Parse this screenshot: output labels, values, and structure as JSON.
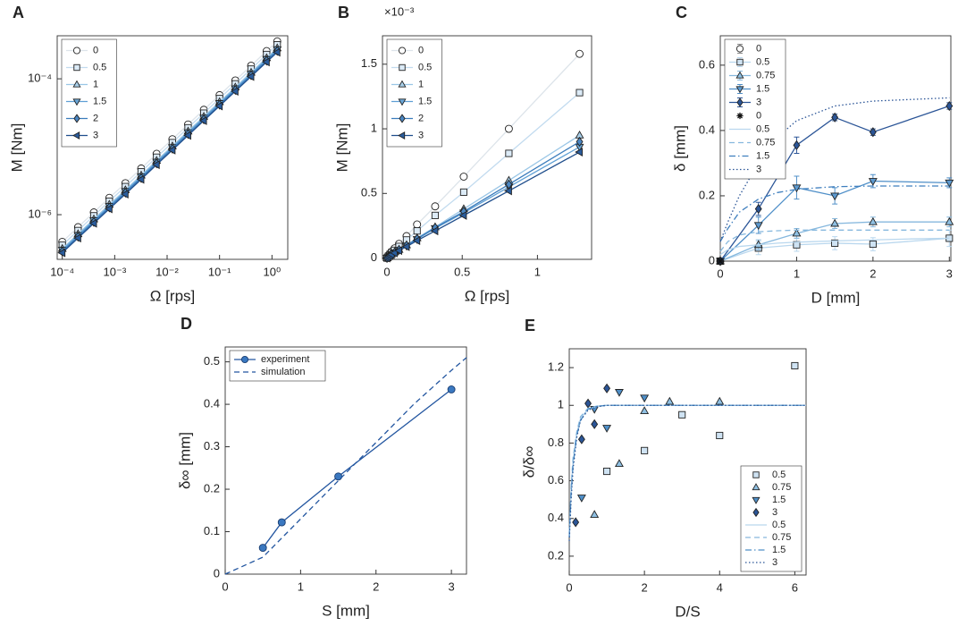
{
  "chart_data": [
    {
      "type": "line",
      "panel_label": "A",
      "xlabel": "Ω [rps]",
      "ylabel": "M [Nm]",
      "xscale": "log",
      "yscale": "log",
      "xlim": [
        8e-05,
        2
      ],
      "ylim": [
        2.2e-07,
        0.00043
      ],
      "xticks": [
        {
          "value": 0.0001,
          "label": "10⁻⁴"
        },
        {
          "value": 0.001,
          "label": "10⁻³"
        },
        {
          "value": 0.01,
          "label": "10⁻²"
        },
        {
          "value": 0.1,
          "label": "10⁻¹"
        },
        {
          "value": 1,
          "label": "10⁰"
        }
      ],
      "yticks": [
        {
          "value": 1e-06,
          "label": "10⁻⁶"
        },
        {
          "value": 0.0001,
          "label": "10⁻⁴"
        }
      ],
      "legend": "upper left",
      "marker_edge": "#222222",
      "x": [
        0.0001,
        0.0002,
        0.0004,
        0.00079,
        0.0016,
        0.0032,
        0.0063,
        0.0126,
        0.0251,
        0.0501,
        0.1,
        0.2,
        0.4,
        0.79,
        1.26
      ],
      "series": [
        {
          "name": "0",
          "color": "#dde4ea",
          "marker": "circle",
          "marker_fill": "#ffffff",
          "line": "solid",
          "values": [
            3.98e-07,
            6.55e-07,
            1.08e-06,
            1.77e-06,
            2.91e-06,
            4.79e-06,
            7.87e-06,
            1.29e-05,
            2.13e-05,
            3.5e-05,
            5.75e-05,
            9.46e-05,
            0.000156,
            0.000256,
            0.000356
          ]
        },
        {
          "name": "0.5",
          "color": "#c2dbef",
          "marker": "square",
          "marker_fill": "#dcebf7",
          "line": "solid",
          "values": [
            3.55e-07,
            5.84e-07,
            9.62e-07,
            1.58e-06,
            2.59e-06,
            4.27e-06,
            7.01e-06,
            1.15e-05,
            1.9e-05,
            3.12e-05,
            5.12e-05,
            8.43e-05,
            0.000139,
            0.000228,
            0.000317
          ]
        },
        {
          "name": "1",
          "color": "#9ac6e6",
          "marker": "triangle-up",
          "marker_fill": "#a9cfe9",
          "line": "solid",
          "values": [
            3.16e-07,
            5.2e-07,
            8.58e-07,
            1.41e-06,
            2.31e-06,
            3.8e-06,
            6.25e-06,
            1.02e-05,
            1.69e-05,
            2.78e-05,
            4.57e-05,
            7.51e-05,
            0.000124,
            0.000203,
            0.000283
          ]
        },
        {
          "name": "1.5",
          "color": "#5f9fd4",
          "marker": "triangle-down",
          "marker_fill": "#6aa7d8",
          "line": "solid",
          "values": [
            3.02e-07,
            4.97e-07,
            8.2e-07,
            1.34e-06,
            2.21e-06,
            3.64e-06,
            5.97e-06,
            9.79e-06,
            1.62e-05,
            2.66e-05,
            4.36e-05,
            7.18e-05,
            0.000118,
            0.000194,
            0.00027
          ]
        },
        {
          "name": "2",
          "color": "#3b7cbc",
          "marker": "diamond",
          "marker_fill": "#4a86c2",
          "line": "solid",
          "values": [
            2.88e-07,
            4.74e-07,
            7.82e-07,
            1.28e-06,
            2.11e-06,
            3.47e-06,
            5.7e-06,
            9.34e-06,
            1.54e-05,
            2.53e-05,
            4.16e-05,
            6.85e-05,
            0.000113,
            0.000185,
            0.000258
          ]
        },
        {
          "name": "3",
          "color": "#1f4e8c",
          "marker": "triangle-left",
          "marker_fill": "#2a5c9c",
          "line": "solid",
          "values": [
            2.75e-07,
            4.53e-07,
            7.47e-07,
            1.22e-06,
            2.01e-06,
            3.31e-06,
            5.45e-06,
            8.93e-06,
            1.47e-05,
            2.42e-05,
            3.98e-05,
            6.55e-05,
            0.000108,
            0.000177,
            0.000246
          ]
        }
      ]
    },
    {
      "type": "line",
      "panel_label": "B",
      "xlabel": "Ω [rps]",
      "ylabel": "M [Nm]",
      "y_multiplier": "×10⁻³",
      "xlim": [
        -0.03,
        1.36
      ],
      "ylim": [
        -0.01,
        1.72
      ],
      "xticks": [
        0,
        0.5,
        1
      ],
      "yticks": [
        0,
        0.5,
        1,
        1.5
      ],
      "legend": "upper left",
      "marker_edge": "#222222",
      "x": [
        0,
        0.01,
        0.02,
        0.03,
        0.05,
        0.08,
        0.13,
        0.2,
        0.32,
        0.51,
        0.81,
        1.28
      ],
      "series": [
        {
          "name": "0",
          "color": "#dde4ea",
          "marker": "circle",
          "marker_fill": "#ffffff",
          "line": "solid",
          "values": [
            0,
            0.02,
            0.035,
            0.05,
            0.075,
            0.11,
            0.17,
            0.26,
            0.4,
            0.63,
            1.0,
            1.58
          ]
        },
        {
          "name": "0.5",
          "color": "#c2dbef",
          "marker": "square",
          "marker_fill": "#dcebf7",
          "line": "solid",
          "values": [
            0,
            0.015,
            0.028,
            0.04,
            0.06,
            0.09,
            0.14,
            0.21,
            0.33,
            0.51,
            0.81,
            1.28
          ]
        },
        {
          "name": "1",
          "color": "#9ac6e6",
          "marker": "triangle-up",
          "marker_fill": "#a9cfe9",
          "line": "solid",
          "values": [
            0,
            0.01,
            0.02,
            0.03,
            0.045,
            0.065,
            0.1,
            0.155,
            0.24,
            0.38,
            0.6,
            0.95
          ]
        },
        {
          "name": "1.5",
          "color": "#5f9fd4",
          "marker": "triangle-down",
          "marker_fill": "#6aa7d8",
          "line": "solid",
          "values": [
            0,
            0.01,
            0.019,
            0.028,
            0.042,
            0.062,
            0.095,
            0.145,
            0.23,
            0.35,
            0.55,
            0.86
          ]
        },
        {
          "name": "2",
          "color": "#3b7cbc",
          "marker": "diamond",
          "marker_fill": "#4a86c2",
          "line": "solid",
          "values": [
            0,
            0.01,
            0.02,
            0.029,
            0.043,
            0.064,
            0.098,
            0.15,
            0.235,
            0.36,
            0.57,
            0.9
          ]
        },
        {
          "name": "3",
          "color": "#1f4e8c",
          "marker": "triangle-left",
          "marker_fill": "#2a5c9c",
          "line": "solid",
          "values": [
            0,
            0.009,
            0.018,
            0.027,
            0.04,
            0.058,
            0.088,
            0.135,
            0.21,
            0.33,
            0.52,
            0.82
          ]
        }
      ]
    },
    {
      "type": "line",
      "panel_label": "C",
      "xlabel": "D [mm]",
      "ylabel": "δ [mm]",
      "xlim": [
        0,
        3.02
      ],
      "ylim": [
        0,
        0.69
      ],
      "xticks": [
        0,
        1,
        2,
        3
      ],
      "yticks": [
        0,
        0.2,
        0.4,
        0.6
      ],
      "legend": "upper left",
      "marker_edge": "#222222",
      "series": [
        {
          "name": "0",
          "color": "#888888",
          "marker": "circle",
          "marker_fill": "#ffffff",
          "line": "none",
          "x": [
            0
          ],
          "values": [
            0
          ],
          "errors": [
            0.005
          ]
        },
        {
          "name": "0.5",
          "color": "#b9d7ee",
          "marker": "square",
          "marker_fill": "#cfe3f3",
          "line": "solid",
          "x": [
            0,
            0.5,
            1,
            1.5,
            2,
            3
          ],
          "values": [
            0,
            0.04,
            0.05,
            0.055,
            0.052,
            0.07
          ],
          "errors": [
            0.005,
            0.02,
            0.02,
            0.02,
            0.02,
            0.025
          ]
        },
        {
          "name": "0.75",
          "color": "#86b8de",
          "marker": "triangle-up",
          "marker_fill": "#8fc0e3",
          "line": "solid",
          "x": [
            0,
            0.5,
            1,
            1.5,
            2,
            3
          ],
          "values": [
            0,
            0.05,
            0.085,
            0.115,
            0.12,
            0.12
          ],
          "errors": [
            0.005,
            0.015,
            0.015,
            0.015,
            0.015,
            0.015
          ]
        },
        {
          "name": "1.5",
          "color": "#4f8fc8",
          "marker": "triangle-down",
          "marker_fill": "#5d9ad0",
          "line": "solid",
          "x": [
            0,
            0.5,
            1,
            1.5,
            2,
            3
          ],
          "values": [
            0,
            0.11,
            0.225,
            0.2,
            0.245,
            0.24
          ],
          "errors": [
            0.005,
            0.025,
            0.035,
            0.025,
            0.02,
            0.015
          ]
        },
        {
          "name": "3",
          "color": "#2b5597",
          "marker": "diamond",
          "marker_fill": "#2b5597",
          "line": "solid",
          "x": [
            0,
            0.5,
            1,
            1.5,
            2,
            3
          ],
          "values": [
            0,
            0.16,
            0.355,
            0.44,
            0.395,
            0.475
          ],
          "errors": [
            0.005,
            0.02,
            0.025,
            0.01,
            0.01,
            0.01
          ]
        },
        {
          "name": "0",
          "color": "#111111",
          "marker": "asterisk",
          "marker_fill": "#111111",
          "line": "none",
          "x": [
            0
          ],
          "values": [
            0
          ]
        },
        {
          "name": "0.5",
          "color": "#b9d7ee",
          "marker": "none",
          "line": "solid",
          "x": [
            0,
            0.1,
            0.25,
            0.5,
            0.75,
            1,
            1.5,
            2,
            2.5,
            3
          ],
          "values": [
            0.02,
            0.035,
            0.045,
            0.05,
            0.055,
            0.058,
            0.062,
            0.065,
            0.068,
            0.07
          ]
        },
        {
          "name": "0.75",
          "color": "#86b8de",
          "marker": "none",
          "line": "dashed",
          "x": [
            0,
            0.1,
            0.25,
            0.5,
            0.75,
            1,
            1.5,
            2,
            2.5,
            3
          ],
          "values": [
            0.03,
            0.06,
            0.08,
            0.09,
            0.093,
            0.095,
            0.095,
            0.095,
            0.095,
            0.095
          ]
        },
        {
          "name": "1.5",
          "color": "#3f7fbe",
          "marker": "none",
          "line": "dashdot",
          "x": [
            0,
            0.1,
            0.25,
            0.5,
            0.75,
            1,
            1.5,
            2,
            2.5,
            3
          ],
          "values": [
            0.06,
            0.1,
            0.15,
            0.19,
            0.21,
            0.22,
            0.228,
            0.23,
            0.23,
            0.23
          ]
        },
        {
          "name": "3",
          "color": "#2b5597",
          "marker": "none",
          "line": "dotted",
          "x": [
            0,
            0.1,
            0.25,
            0.5,
            0.75,
            1,
            1.5,
            2,
            2.5,
            3
          ],
          "values": [
            0.06,
            0.12,
            0.2,
            0.3,
            0.38,
            0.43,
            0.475,
            0.49,
            0.495,
            0.5
          ]
        }
      ]
    },
    {
      "type": "line",
      "panel_label": "D",
      "xlabel": "S [mm]",
      "ylabel": "δ∞ [mm]",
      "xlim": [
        0,
        3.2
      ],
      "ylim": [
        0,
        0.535
      ],
      "xticks": [
        0,
        1,
        2,
        3
      ],
      "yticks": [
        0,
        0.1,
        0.2,
        0.3,
        0.4,
        0.5
      ],
      "legend": "upper left",
      "marker_edge": "#1a3d70",
      "series": [
        {
          "name": "experiment",
          "color": "#2356a0",
          "marker": "circle",
          "marker_fill": "#3a78c0",
          "line": "solid",
          "x": [
            0.5,
            0.75,
            1.5,
            3
          ],
          "values": [
            0.062,
            0.122,
            0.23,
            0.435
          ]
        },
        {
          "name": "simulation",
          "color": "#2356a0",
          "marker": "none",
          "line": "dashed",
          "x": [
            0,
            0.5,
            1,
            1.5,
            2,
            2.5,
            3,
            3.2
          ],
          "values": [
            0,
            0.04,
            0.13,
            0.22,
            0.31,
            0.4,
            0.48,
            0.51
          ]
        }
      ]
    },
    {
      "type": "line",
      "panel_label": "E",
      "xlabel": "D/S",
      "ylabel": "δ/δ∞",
      "xlim": [
        0,
        6.3
      ],
      "ylim": [
        0.1,
        1.3
      ],
      "xticks": [
        0,
        2,
        4,
        6
      ],
      "yticks": [
        0.2,
        0.4,
        0.6,
        0.8,
        1,
        1.2
      ],
      "legend": "lower right",
      "marker_edge": "#222222",
      "series": [
        {
          "name": "0.5",
          "color": "#b9d7ee",
          "marker": "square",
          "marker_fill": "#cfe3f3",
          "line": "none",
          "x": [
            1,
            2,
            3,
            4,
            6
          ],
          "values": [
            0.65,
            0.76,
            0.95,
            0.84,
            1.21
          ]
        },
        {
          "name": "0.75",
          "color": "#86b8de",
          "marker": "triangle-up",
          "marker_fill": "#8fc0e3",
          "line": "none",
          "x": [
            0.67,
            1.33,
            2,
            2.67,
            4
          ],
          "values": [
            0.42,
            0.69,
            0.97,
            1.02,
            1.02
          ]
        },
        {
          "name": "1.5",
          "color": "#4f8fc8",
          "marker": "triangle-down",
          "marker_fill": "#4f8fc8",
          "line": "none",
          "x": [
            0.33,
            0.67,
            1,
            1.33,
            2
          ],
          "values": [
            0.51,
            0.98,
            0.88,
            1.07,
            1.04
          ]
        },
        {
          "name": "3",
          "color": "#2b5597",
          "marker": "diamond",
          "marker_fill": "#2b5597",
          "line": "none",
          "x": [
            0.17,
            0.33,
            0.5,
            0.67,
            1
          ],
          "values": [
            0.38,
            0.82,
            1.01,
            0.9,
            1.09
          ]
        },
        {
          "name": "0.5",
          "color": "#b9d7ee",
          "marker": "none",
          "line": "solid",
          "x": [
            0,
            0.05,
            0.1,
            0.2,
            0.3,
            0.5,
            0.75,
            1,
            2,
            4,
            6.3
          ],
          "values": [
            0.3,
            0.55,
            0.7,
            0.85,
            0.93,
            0.98,
            0.995,
            1,
            1,
            1,
            1
          ]
        },
        {
          "name": "0.75",
          "color": "#86b8de",
          "marker": "none",
          "line": "dashed",
          "x": [
            0,
            0.05,
            0.1,
            0.2,
            0.3,
            0.5,
            0.75,
            1,
            2,
            4,
            6.3
          ],
          "values": [
            0.32,
            0.57,
            0.72,
            0.86,
            0.94,
            0.985,
            0.997,
            1,
            1,
            1,
            1
          ]
        },
        {
          "name": "1.5",
          "color": "#4f8fc8",
          "marker": "none",
          "line": "dashdot",
          "x": [
            0,
            0.05,
            0.1,
            0.2,
            0.3,
            0.5,
            0.75,
            1,
            2,
            4,
            6.3
          ],
          "values": [
            0.3,
            0.53,
            0.68,
            0.84,
            0.92,
            0.98,
            0.995,
            1,
            1,
            1,
            1
          ]
        },
        {
          "name": "3",
          "color": "#2b5597",
          "marker": "none",
          "line": "dotted",
          "x": [
            0,
            0.05,
            0.1,
            0.2,
            0.3,
            0.5,
            0.75,
            1,
            2,
            4,
            6.3
          ],
          "values": [
            0.28,
            0.5,
            0.66,
            0.83,
            0.92,
            0.975,
            0.993,
            1,
            1,
            1,
            1
          ]
        }
      ]
    }
  ]
}
